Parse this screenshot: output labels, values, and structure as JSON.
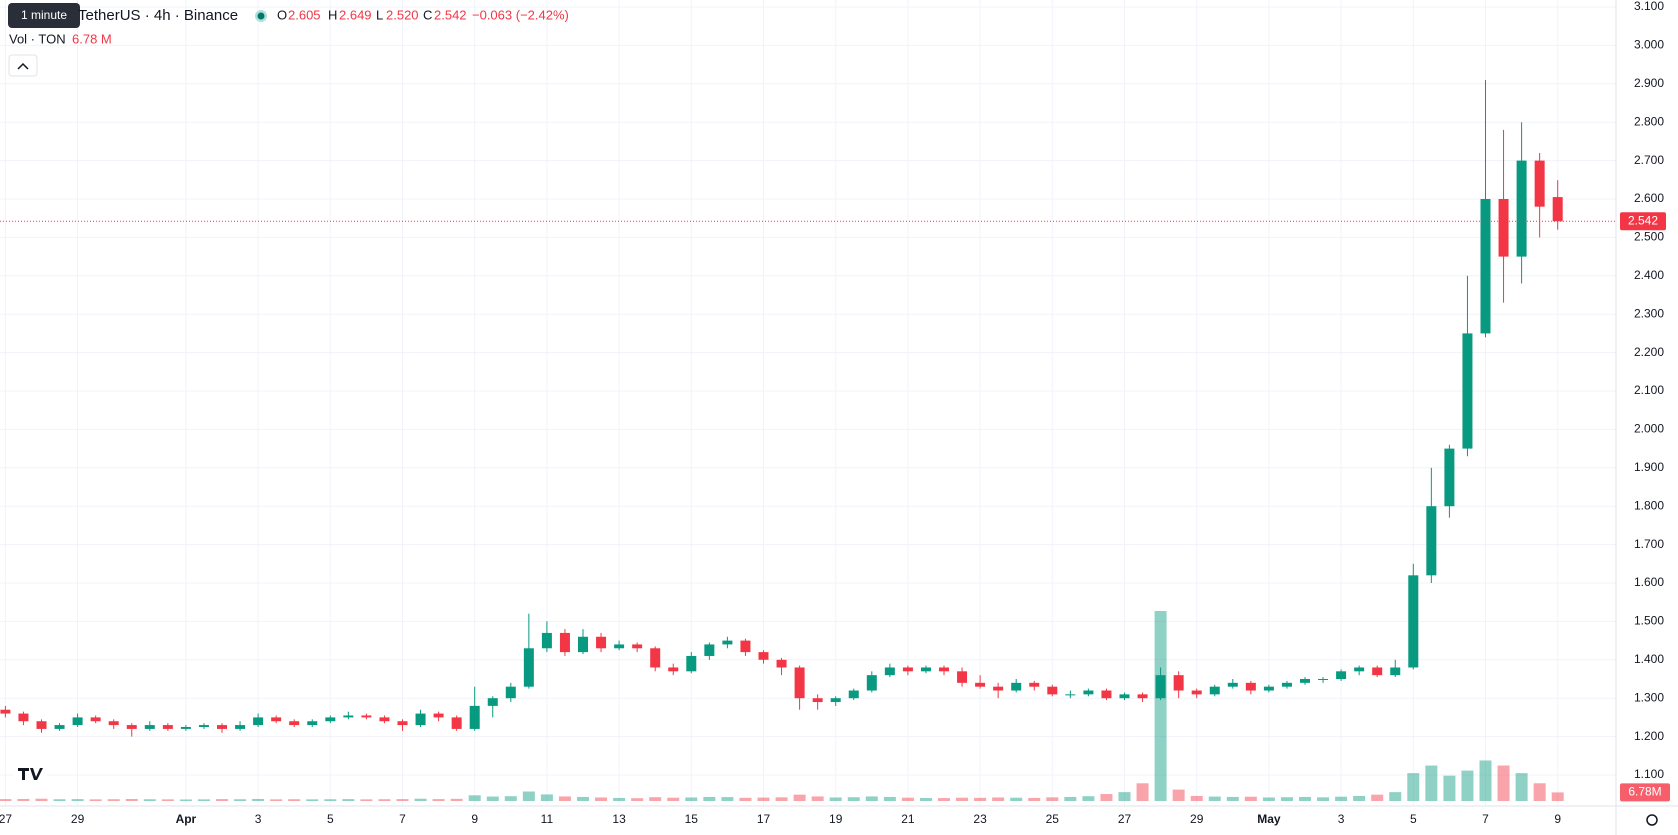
{
  "header": {
    "tooltip": "1 minute",
    "symbol": "TetherUS · 4h · Binance",
    "o_label": "O",
    "o": "2.605",
    "h_label": "H",
    "h": "2.649",
    "l_label": "L",
    "l": "2.520",
    "c_label": "C",
    "c": "2.542",
    "change": "−0.063 (−2.42%)",
    "vol_label": "Vol · TON",
    "vol": "6.78 M"
  },
  "chart_data": {
    "type": "candlestick",
    "up_color": "#089981",
    "down_color": "#f23645",
    "ylim": [
      1.1,
      3.1
    ],
    "yticks": [
      {
        "value": 1.1,
        "label": "1.100"
      },
      {
        "value": 1.2,
        "label": "1.200"
      },
      {
        "value": 1.3,
        "label": "1.300"
      },
      {
        "value": 1.4,
        "label": "1.400"
      },
      {
        "value": 1.5,
        "label": "1.500"
      },
      {
        "value": 1.6,
        "label": "1.600"
      },
      {
        "value": 1.7,
        "label": "1.700"
      },
      {
        "value": 1.8,
        "label": "1.800"
      },
      {
        "value": 1.9,
        "label": "1.900"
      },
      {
        "value": 2.0,
        "label": "2.000"
      },
      {
        "value": 2.1,
        "label": "2.100"
      },
      {
        "value": 2.2,
        "label": "2.200"
      },
      {
        "value": 2.3,
        "label": "2.300"
      },
      {
        "value": 2.4,
        "label": "2.400"
      },
      {
        "value": 2.5,
        "label": "2.500"
      },
      {
        "value": 2.6,
        "label": "2.600"
      },
      {
        "value": 2.7,
        "label": "2.700"
      },
      {
        "value": 2.8,
        "label": "2.800"
      },
      {
        "value": 2.9,
        "label": "2.900"
      },
      {
        "value": 3.0,
        "label": "3.000"
      },
      {
        "value": 3.1,
        "label": "3.100"
      }
    ],
    "xticks": [
      "27",
      "29",
      "Apr",
      "3",
      "5",
      "7",
      "9",
      "11",
      "13",
      "15",
      "17",
      "19",
      "21",
      "23",
      "25",
      "27",
      "29",
      "May",
      "3",
      "5",
      "7",
      "9"
    ],
    "grid": true,
    "last_price": 2.542,
    "ohlc": [
      [
        1.27,
        1.28,
        1.25,
        1.26
      ],
      [
        1.26,
        1.265,
        1.23,
        1.24
      ],
      [
        1.24,
        1.245,
        1.21,
        1.22
      ],
      [
        1.22,
        1.235,
        1.215,
        1.23
      ],
      [
        1.23,
        1.26,
        1.225,
        1.25
      ],
      [
        1.25,
        1.255,
        1.235,
        1.24
      ],
      [
        1.24,
        1.245,
        1.22,
        1.23
      ],
      [
        1.23,
        1.235,
        1.2,
        1.22
      ],
      [
        1.22,
        1.24,
        1.215,
        1.23
      ],
      [
        1.23,
        1.235,
        1.215,
        1.22
      ],
      [
        1.22,
        1.23,
        1.215,
        1.225
      ],
      [
        1.225,
        1.235,
        1.22,
        1.23
      ],
      [
        1.23,
        1.235,
        1.21,
        1.22
      ],
      [
        1.22,
        1.24,
        1.215,
        1.23
      ],
      [
        1.23,
        1.26,
        1.225,
        1.25
      ],
      [
        1.25,
        1.255,
        1.235,
        1.24
      ],
      [
        1.24,
        1.245,
        1.225,
        1.23
      ],
      [
        1.23,
        1.245,
        1.225,
        1.24
      ],
      [
        1.24,
        1.255,
        1.235,
        1.25
      ],
      [
        1.25,
        1.265,
        1.245,
        1.255
      ],
      [
        1.255,
        1.26,
        1.245,
        1.25
      ],
      [
        1.25,
        1.255,
        1.235,
        1.24
      ],
      [
        1.24,
        1.245,
        1.215,
        1.23
      ],
      [
        1.23,
        1.27,
        1.225,
        1.26
      ],
      [
        1.26,
        1.265,
        1.24,
        1.25
      ],
      [
        1.25,
        1.255,
        1.215,
        1.22
      ],
      [
        1.22,
        1.33,
        1.215,
        1.28
      ],
      [
        1.28,
        1.305,
        1.25,
        1.3
      ],
      [
        1.3,
        1.34,
        1.29,
        1.33
      ],
      [
        1.33,
        1.52,
        1.325,
        1.43
      ],
      [
        1.43,
        1.5,
        1.42,
        1.47
      ],
      [
        1.47,
        1.48,
        1.41,
        1.42
      ],
      [
        1.42,
        1.48,
        1.415,
        1.46
      ],
      [
        1.46,
        1.47,
        1.42,
        1.43
      ],
      [
        1.43,
        1.45,
        1.425,
        1.44
      ],
      [
        1.44,
        1.445,
        1.42,
        1.43
      ],
      [
        1.43,
        1.435,
        1.37,
        1.38
      ],
      [
        1.38,
        1.39,
        1.36,
        1.37
      ],
      [
        1.37,
        1.42,
        1.365,
        1.41
      ],
      [
        1.41,
        1.445,
        1.4,
        1.44
      ],
      [
        1.44,
        1.46,
        1.43,
        1.45
      ],
      [
        1.45,
        1.455,
        1.41,
        1.42
      ],
      [
        1.42,
        1.425,
        1.39,
        1.4
      ],
      [
        1.4,
        1.405,
        1.36,
        1.38
      ],
      [
        1.38,
        1.385,
        1.27,
        1.3
      ],
      [
        1.3,
        1.31,
        1.27,
        1.29
      ],
      [
        1.29,
        1.305,
        1.28,
        1.3
      ],
      [
        1.3,
        1.325,
        1.295,
        1.32
      ],
      [
        1.32,
        1.37,
        1.315,
        1.36
      ],
      [
        1.36,
        1.39,
        1.355,
        1.38
      ],
      [
        1.38,
        1.385,
        1.36,
        1.37
      ],
      [
        1.37,
        1.385,
        1.365,
        1.38
      ],
      [
        1.38,
        1.385,
        1.36,
        1.37
      ],
      [
        1.37,
        1.38,
        1.33,
        1.34
      ],
      [
        1.34,
        1.36,
        1.325,
        1.33
      ],
      [
        1.33,
        1.34,
        1.3,
        1.32
      ],
      [
        1.32,
        1.35,
        1.315,
        1.34
      ],
      [
        1.34,
        1.345,
        1.32,
        1.33
      ],
      [
        1.33,
        1.335,
        1.305,
        1.31
      ],
      [
        1.31,
        1.32,
        1.3,
        1.31
      ],
      [
        1.31,
        1.325,
        1.305,
        1.32
      ],
      [
        1.32,
        1.325,
        1.295,
        1.3
      ],
      [
        1.3,
        1.315,
        1.295,
        1.31
      ],
      [
        1.31,
        1.315,
        1.29,
        1.3
      ],
      [
        1.3,
        1.38,
        1.295,
        1.36
      ],
      [
        1.36,
        1.37,
        1.3,
        1.32
      ],
      [
        1.32,
        1.325,
        1.3,
        1.31
      ],
      [
        1.31,
        1.335,
        1.305,
        1.33
      ],
      [
        1.33,
        1.35,
        1.325,
        1.34
      ],
      [
        1.34,
        1.345,
        1.31,
        1.32
      ],
      [
        1.32,
        1.335,
        1.315,
        1.33
      ],
      [
        1.33,
        1.345,
        1.325,
        1.34
      ],
      [
        1.34,
        1.355,
        1.335,
        1.35
      ],
      [
        1.35,
        1.355,
        1.34,
        1.35
      ],
      [
        1.35,
        1.375,
        1.345,
        1.37
      ],
      [
        1.37,
        1.385,
        1.36,
        1.38
      ],
      [
        1.38,
        1.385,
        1.355,
        1.36
      ],
      [
        1.36,
        1.4,
        1.355,
        1.38
      ],
      [
        1.38,
        1.65,
        1.375,
        1.62
      ],
      [
        1.62,
        1.9,
        1.6,
        1.8
      ],
      [
        1.8,
        1.96,
        1.77,
        1.95
      ],
      [
        1.95,
        2.4,
        1.93,
        2.25
      ],
      [
        2.25,
        2.91,
        2.24,
        2.6
      ],
      [
        2.6,
        2.78,
        2.33,
        2.45
      ],
      [
        2.45,
        2.8,
        2.38,
        2.7
      ],
      [
        2.7,
        2.72,
        2.5,
        2.58
      ],
      [
        2.605,
        2.649,
        2.52,
        2.542
      ]
    ],
    "volume": [
      1.5,
      1.6,
      1.8,
      1.4,
      1.5,
      1.3,
      1.4,
      1.6,
      1.4,
      1.3,
      1.2,
      1.3,
      1.5,
      1.4,
      1.6,
      1.3,
      1.4,
      1.3,
      1.4,
      1.5,
      1.3,
      1.4,
      1.5,
      1.8,
      1.5,
      1.7,
      4.5,
      3.5,
      3.8,
      7.5,
      5.2,
      3.6,
      3.2,
      2.8,
      2.4,
      2.2,
      3.0,
      2.6,
      2.8,
      3.2,
      3.1,
      2.5,
      2.7,
      2.9,
      5.0,
      3.6,
      2.8,
      3.0,
      3.6,
      3.2,
      2.6,
      2.4,
      2.3,
      2.6,
      2.5,
      2.8,
      2.6,
      2.4,
      2.9,
      3.2,
      3.8,
      5.5,
      7.0,
      14.0,
      150.0,
      9.0,
      4.0,
      3.5,
      3.2,
      3.4,
      2.8,
      3.0,
      3.2,
      2.9,
      3.4,
      4.0,
      5.0,
      7.0,
      22.0,
      28.0,
      20.0,
      24.0,
      32.0,
      28.0,
      22.0,
      14.0,
      6.78
    ],
    "value_labels": {
      "86": "6.78M"
    }
  }
}
